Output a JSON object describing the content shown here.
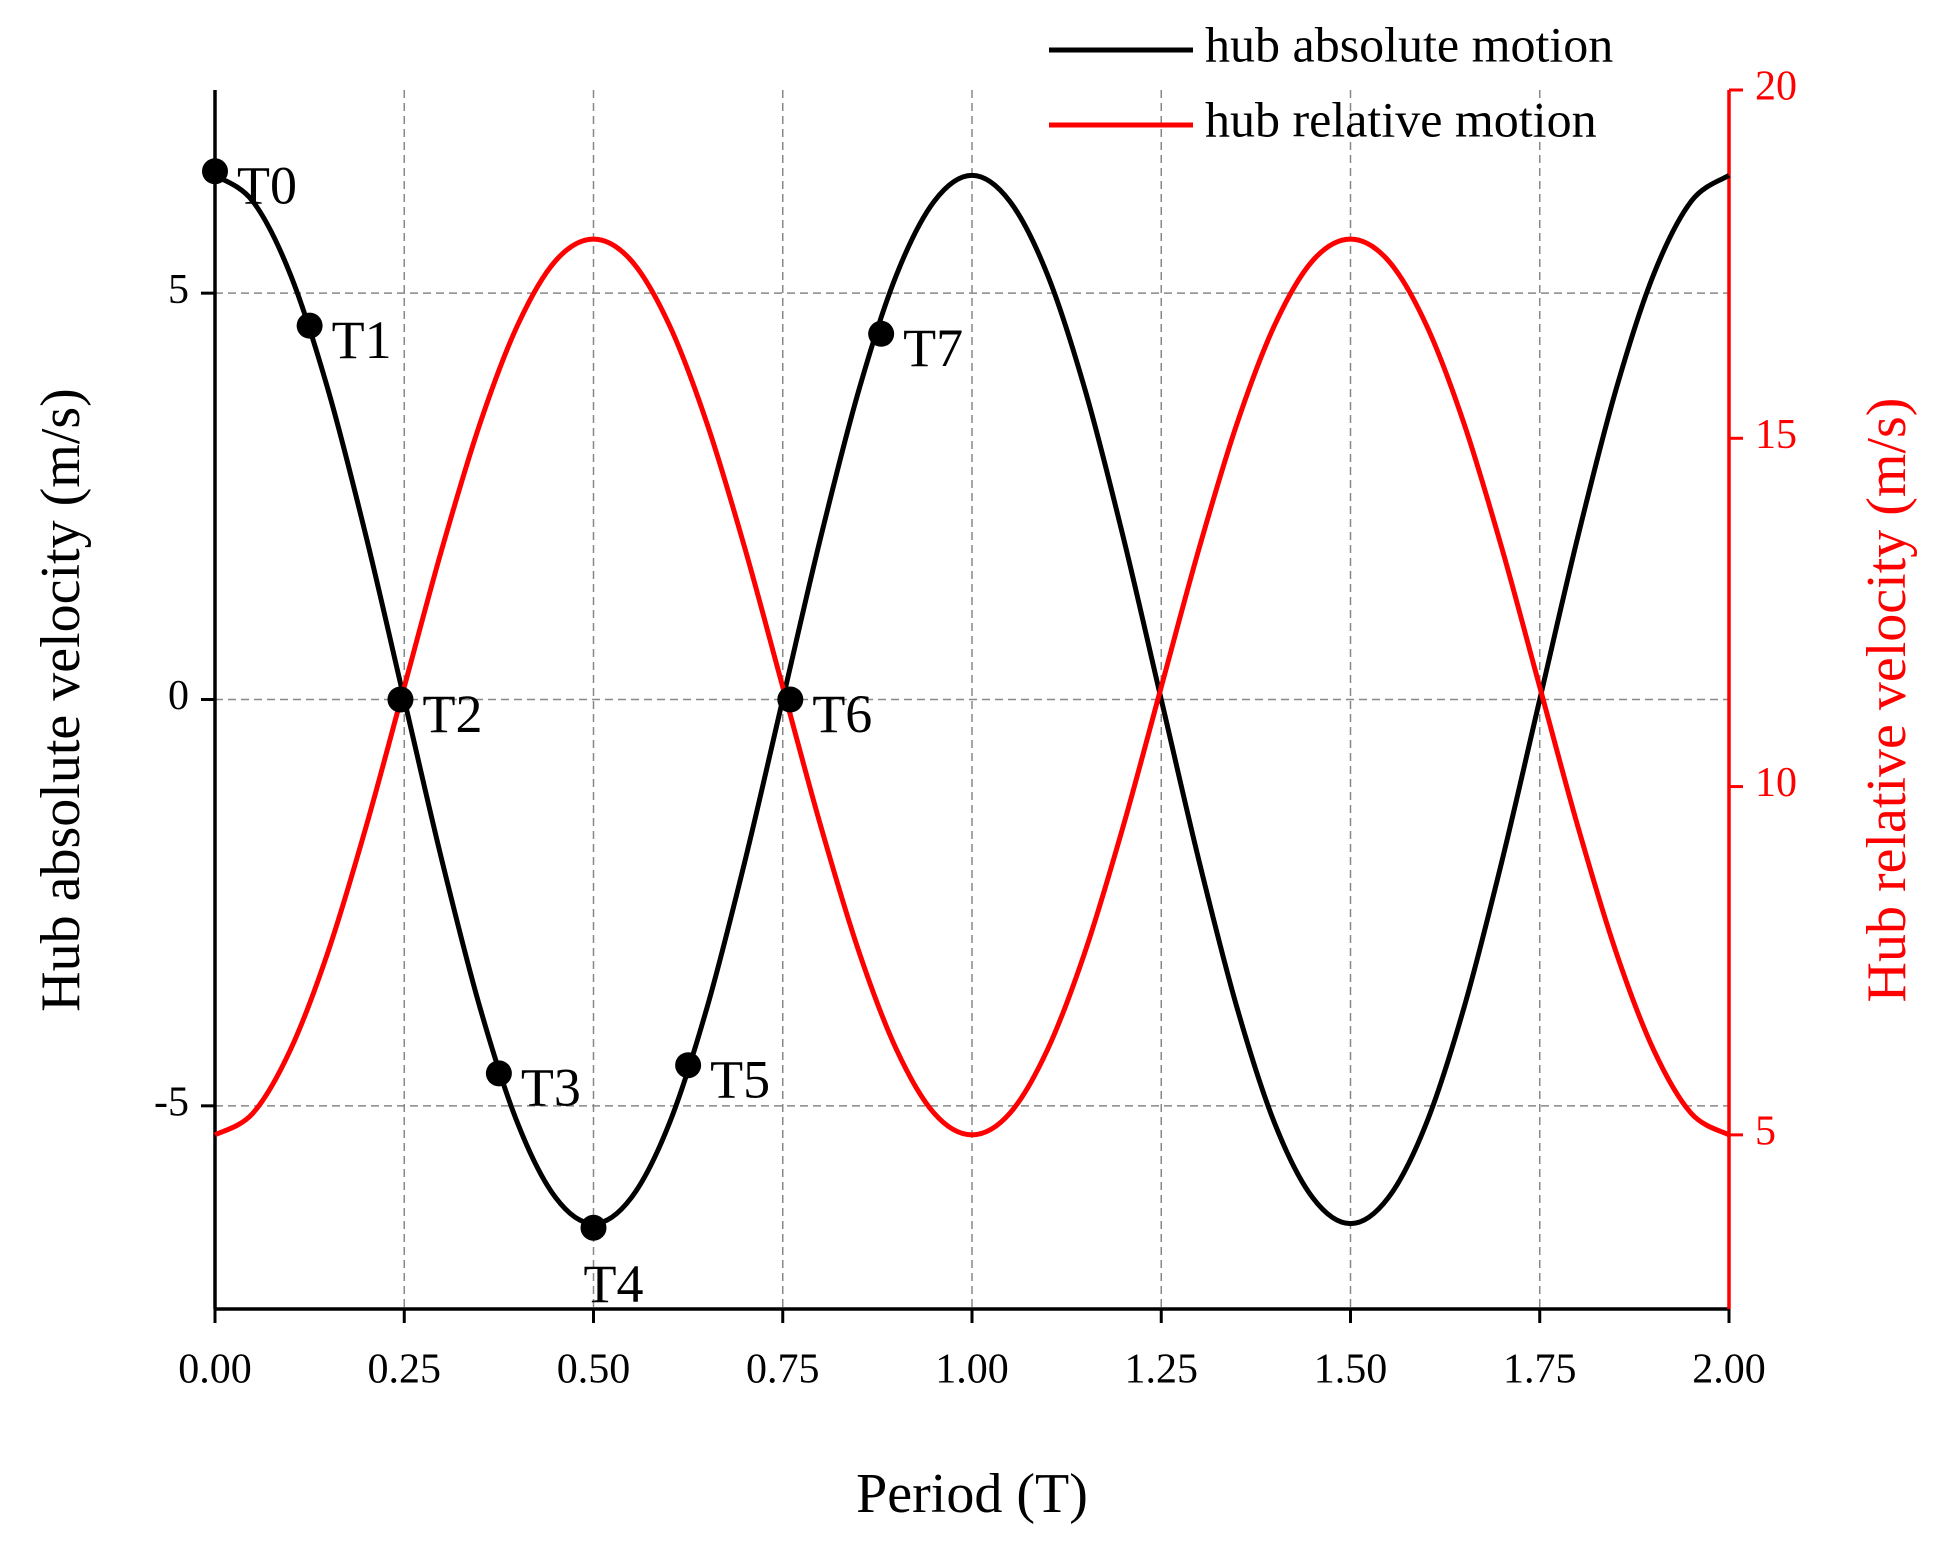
{
  "chart_data": {
    "type": "line",
    "xlabel": "Period (T)",
    "ylabel": "Hub absolute velocity (m/s)",
    "y2label": "Hub relative velocity (m/s)",
    "x": [
      0,
      0.05,
      0.1,
      0.15,
      0.2,
      0.25,
      0.3,
      0.35,
      0.4,
      0.45,
      0.5,
      0.55,
      0.6,
      0.65,
      0.7,
      0.75,
      0.8,
      0.85,
      0.9,
      0.95,
      1,
      1.05,
      1.1,
      1.15,
      1.2,
      1.25,
      1.3,
      1.35,
      1.4,
      1.45,
      1.5,
      1.55,
      1.6,
      1.65,
      1.7,
      1.75,
      1.8,
      1.85,
      1.9,
      1.95,
      2
    ],
    "series": [
      {
        "name": "hub absolute motion",
        "color": "#000000",
        "values": [
          6.45,
          6.13,
          5.22,
          3.79,
          1.99,
          0,
          -1.99,
          -3.79,
          -5.22,
          -6.13,
          -6.45,
          -6.13,
          -5.22,
          -3.79,
          -1.99,
          0,
          1.99,
          3.79,
          5.22,
          6.13,
          6.45,
          6.13,
          5.22,
          3.79,
          1.99,
          0,
          -1.99,
          -3.79,
          -5.22,
          -6.13,
          -6.45,
          -6.13,
          -5.22,
          -3.79,
          -1.99,
          0,
          1.99,
          3.79,
          5.22,
          6.13,
          6.45
        ]
      },
      {
        "name": "hub relative motion",
        "color": "#ff0000",
        "axis": "y2",
        "values": [
          5.0,
          5.31,
          6.23,
          7.65,
          9.44,
          11.43,
          13.42,
          15.21,
          16.63,
          17.55,
          17.86,
          17.55,
          16.63,
          15.21,
          13.42,
          11.43,
          9.44,
          7.65,
          6.23,
          5.31,
          5.0,
          5.31,
          6.23,
          7.65,
          9.44,
          11.43,
          13.42,
          15.21,
          16.63,
          17.55,
          17.86,
          17.55,
          16.63,
          15.21,
          13.42,
          11.43,
          9.44,
          7.65,
          6.23,
          5.31,
          5.0
        ]
      }
    ],
    "annotations": [
      {
        "text": "T0",
        "x": 0,
        "y": 6.5
      },
      {
        "text": "T1",
        "x": 0.125,
        "y": 4.6
      },
      {
        "text": "T2",
        "x": 0.245,
        "y": 0
      },
      {
        "text": "T3",
        "x": 0.375,
        "y": -4.6
      },
      {
        "text": "T4",
        "x": 0.5,
        "y": -6.5
      },
      {
        "text": "T5",
        "x": 0.625,
        "y": -4.5
      },
      {
        "text": "T6",
        "x": 0.76,
        "y": 0
      },
      {
        "text": "T7",
        "x": 0.88,
        "y": 4.5
      }
    ],
    "xlim": [
      0,
      2
    ],
    "xticks": [
      {
        "value": 0,
        "label": "0.00"
      },
      {
        "value": 0.25,
        "label": "0.25"
      },
      {
        "value": 0.5,
        "label": "0.50"
      },
      {
        "value": 0.75,
        "label": "0.75"
      },
      {
        "value": 1,
        "label": "1.00"
      },
      {
        "value": 1.25,
        "label": "1.25"
      },
      {
        "value": 1.5,
        "label": "1.50"
      },
      {
        "value": 1.75,
        "label": "1.75"
      },
      {
        "value": 2,
        "label": "2.00"
      }
    ],
    "ylim": [
      -7.5,
      7.5
    ],
    "yticks": [
      -5,
      0,
      5
    ],
    "y2lim": [
      2.5,
      20
    ],
    "y2ticks": [
      5,
      10,
      15,
      20
    ],
    "y2color": "#ff0000",
    "grid": true,
    "legend": "upper right"
  }
}
